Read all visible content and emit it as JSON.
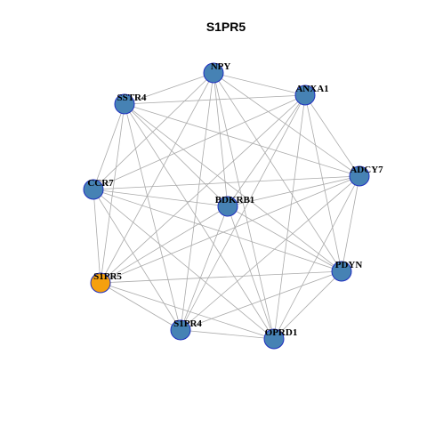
{
  "title": "S1PR5",
  "nodes": [
    {
      "label": "NPY"
    },
    {
      "label": "ANXA1"
    },
    {
      "label": "SSTR4"
    },
    {
      "label": "ADCY7"
    },
    {
      "label": "CCR7"
    },
    {
      "label": "BDKRB1"
    },
    {
      "label": "PDYN"
    },
    {
      "label": "S1PR5"
    },
    {
      "label": "S1PR4"
    },
    {
      "label": "OPRD1"
    }
  ]
}
